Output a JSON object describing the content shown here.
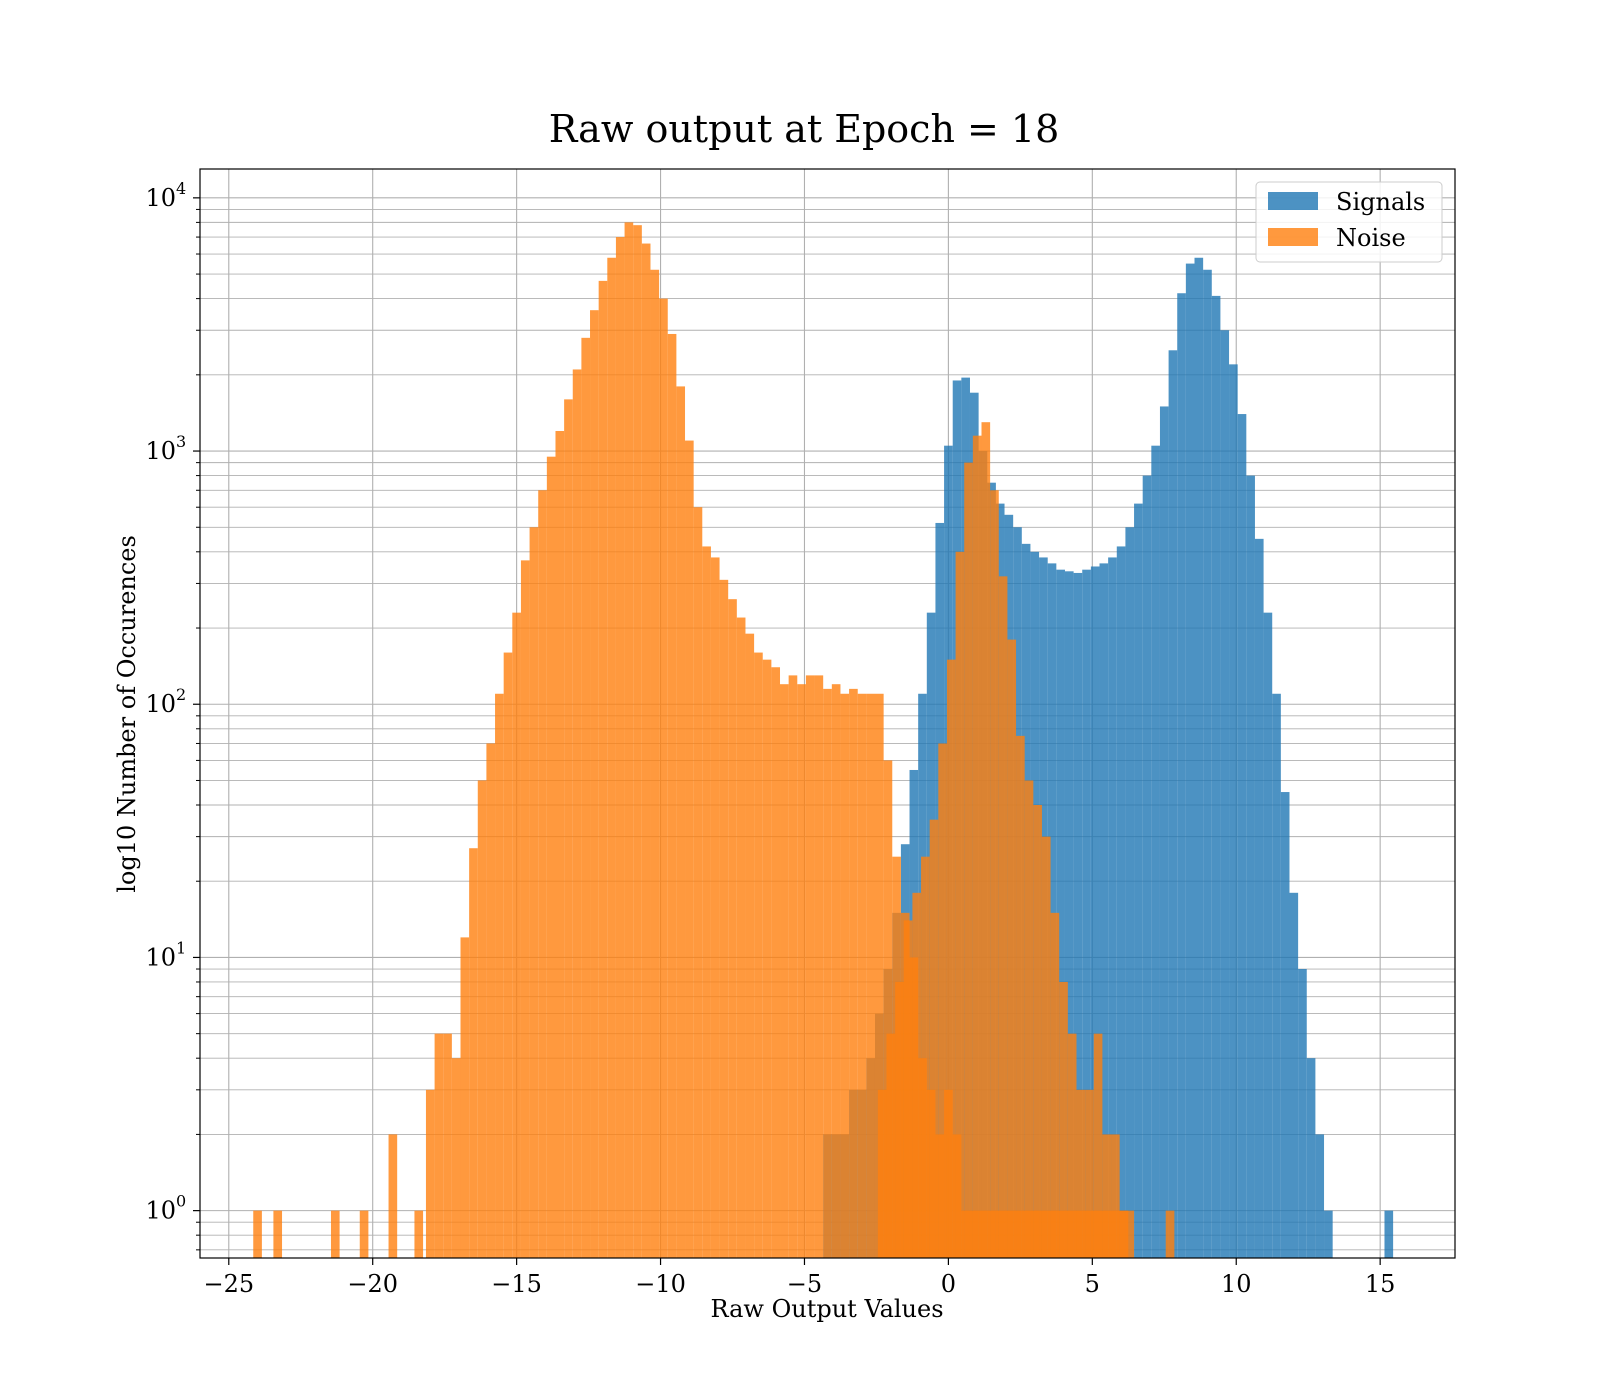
{
  "chart_data": {
    "type": "bar",
    "title": "Raw output at Epoch = 18",
    "xlabel": "Raw Output Values",
    "ylabel": "log10 Number of Occurences",
    "xlim": [
      -26,
      17.6
    ],
    "ylim": [
      0.65,
      13000
    ],
    "yscale": "log",
    "grid": true,
    "grid_minor": true,
    "legend_position": "top-right",
    "x_ticks": [
      {
        "value": -25,
        "label": "−25"
      },
      {
        "value": -20,
        "label": "−20"
      },
      {
        "value": -15,
        "label": "−15"
      },
      {
        "value": -10,
        "label": "−10"
      },
      {
        "value": -5,
        "label": "−5"
      },
      {
        "value": 0,
        "label": "0"
      },
      {
        "value": 5,
        "label": "5"
      },
      {
        "value": 10,
        "label": "10"
      },
      {
        "value": 15,
        "label": "15"
      }
    ],
    "y_ticks": [
      {
        "value": 1,
        "base": "10",
        "exp": "0"
      },
      {
        "value": 10,
        "base": "10",
        "exp": "1"
      },
      {
        "value": 100,
        "base": "10",
        "exp": "2"
      },
      {
        "value": 1000,
        "base": "10",
        "exp": "3"
      },
      {
        "value": 10000,
        "base": "10",
        "exp": "4"
      }
    ],
    "series": [
      {
        "name": "Signals",
        "color": "#1f77b4",
        "opacity": 0.8,
        "x": [
          -4.2,
          -3.9,
          -3.6,
          -3.3,
          -3.0,
          -2.7,
          -2.4,
          -2.1,
          -1.8,
          -1.5,
          -1.2,
          -0.9,
          -0.6,
          -0.3,
          0.0,
          0.3,
          0.6,
          0.9,
          1.2,
          1.5,
          1.8,
          2.1,
          2.4,
          2.7,
          3.0,
          3.3,
          3.6,
          3.9,
          4.2,
          4.5,
          4.8,
          5.1,
          5.4,
          5.7,
          6.0,
          6.3,
          6.6,
          6.9,
          7.2,
          7.5,
          7.8,
          8.1,
          8.4,
          8.7,
          9.0,
          9.3,
          9.6,
          9.9,
          10.2,
          10.5,
          10.8,
          11.1,
          11.4,
          11.7,
          12.0,
          12.3,
          12.6,
          12.9,
          13.2,
          13.5,
          13.8,
          14.1,
          14.4,
          14.7,
          15.0,
          15.3
        ],
        "values": [
          2,
          2,
          2,
          3,
          3,
          4,
          6,
          9,
          15,
          28,
          55,
          110,
          230,
          520,
          1050,
          1900,
          1950,
          1700,
          1000,
          750,
          620,
          560,
          500,
          430,
          400,
          380,
          360,
          340,
          335,
          330,
          340,
          350,
          360,
          380,
          420,
          500,
          620,
          800,
          1050,
          1500,
          2500,
          4200,
          5500,
          5800,
          5200,
          4100,
          3000,
          2200,
          1400,
          800,
          450,
          230,
          110,
          45,
          18,
          9,
          4,
          2,
          1,
          0,
          0,
          0,
          0,
          0,
          0,
          1
        ],
        "width": 0.3
      },
      {
        "name": "Noise",
        "color": "#ff7f0e",
        "opacity": 0.8,
        "x": [
          -24.0,
          -23.3,
          -21.3,
          -20.3,
          -19.3,
          -18.4,
          -18.0,
          -17.7,
          -17.4,
          -17.1,
          -16.8,
          -16.5,
          -16.2,
          -15.9,
          -15.6,
          -15.3,
          -15.0,
          -14.7,
          -14.4,
          -14.1,
          -13.8,
          -13.5,
          -13.2,
          -12.9,
          -12.6,
          -12.3,
          -12.0,
          -11.7,
          -11.4,
          -11.1,
          -10.8,
          -10.5,
          -10.2,
          -9.9,
          -9.6,
          -9.3,
          -9.0,
          -8.7,
          -8.4,
          -8.1,
          -7.8,
          -7.5,
          -7.2,
          -6.9,
          -6.6,
          -6.3,
          -6.0,
          -5.7,
          -5.4,
          -5.1,
          -4.8,
          -4.5,
          -4.2,
          -3.9,
          -3.6,
          -3.3,
          -3.0,
          -2.7,
          -2.4,
          -2.1,
          -1.8,
          -1.5,
          -1.2,
          -0.9,
          -0.6,
          -0.3,
          0.0,
          0.3,
          0.6,
          0.9,
          1.2,
          1.5,
          1.8,
          2.1,
          2.4,
          2.7,
          3.0,
          3.3,
          3.6,
          3.9,
          4.2,
          4.5,
          4.8,
          5.1,
          5.4,
          5.7,
          6.0,
          6.3,
          7.7
        ],
        "values": [
          1,
          1,
          1,
          1,
          2,
          1,
          3,
          5,
          5,
          4,
          12,
          27,
          50,
          70,
          110,
          160,
          230,
          370,
          500,
          700,
          950,
          1200,
          1600,
          2100,
          2800,
          3600,
          4700,
          5800,
          7000,
          8000,
          7800,
          6600,
          5200,
          4000,
          2900,
          1800,
          1100,
          600,
          420,
          380,
          310,
          260,
          220,
          190,
          160,
          150,
          140,
          120,
          130,
          120,
          130,
          130,
          115,
          120,
          110,
          115,
          110,
          110,
          110,
          60,
          25,
          15,
          10,
          4,
          3,
          2,
          3,
          2,
          1,
          1,
          1,
          1,
          1,
          1,
          1,
          1,
          1,
          1,
          1,
          1,
          1,
          1,
          1,
          1,
          1,
          1,
          1,
          1,
          1
        ],
        "width": 0.3
      },
      {
        "name": "",
        "color": "#ff7f0e",
        "opacity": 0.8,
        "x": [
          -2.3,
          -2.0,
          -1.7,
          -1.4,
          -1.1,
          -0.8,
          -0.5,
          -0.2,
          0.1,
          0.4,
          0.7,
          1.0,
          1.3,
          1.6,
          1.9,
          2.2,
          2.5,
          2.8,
          3.1,
          3.4,
          3.7,
          4.0,
          4.3,
          4.6,
          4.9,
          5.2,
          5.5,
          5.8,
          6.1
        ],
        "values": [
          3,
          5,
          8,
          14,
          18,
          25,
          35,
          70,
          150,
          400,
          900,
          1150,
          1300,
          700,
          320,
          180,
          75,
          50,
          40,
          30,
          15,
          8,
          5,
          3,
          3,
          5,
          2,
          2,
          1
        ],
        "width": 0.3
      }
    ]
  }
}
